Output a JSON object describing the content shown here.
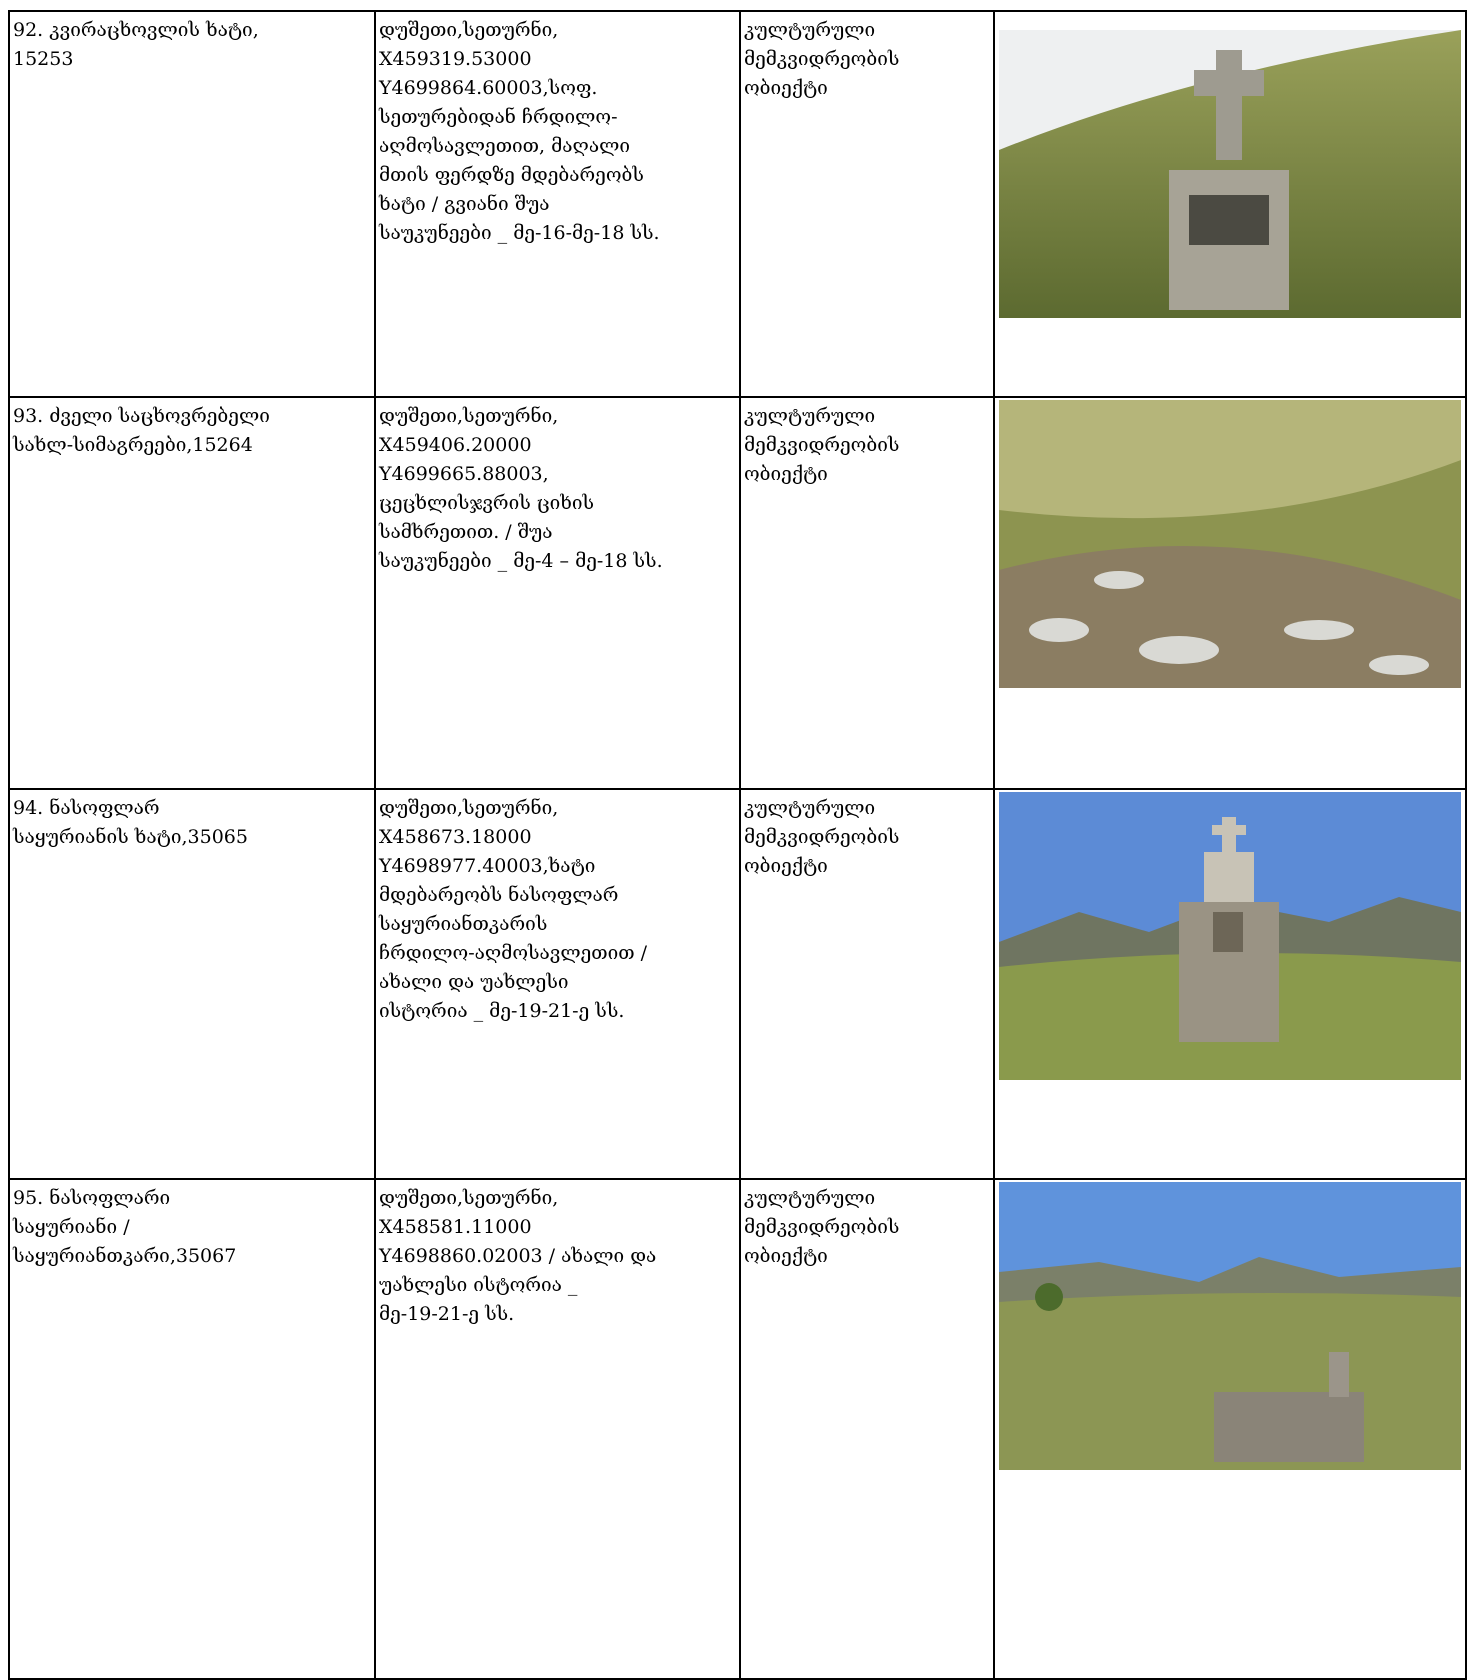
{
  "table": {
    "rows": [
      {
        "name": [
          "92.  კვირაცხოვლის ხატი,",
          "15253"
        ],
        "location": [
          "დუშეთი,სეთურნი,",
          "X459319.53000",
          "Y4699864.60003,სოფ.",
          "სეთურებიდან ჩრდილო-",
          "აღმოსავლეთით, მაღალი",
          "მთის ფერდზე მდებარეობს",
          "ხატი / გვიანი შუა",
          "საუკუნეები _ მე-16-მე-18 სს."
        ],
        "category": [
          "კულტურული",
          "მემკვიდრეობის",
          "ობიექტი"
        ]
      },
      {
        "name": [
          "93. ძველი საცხოვრებელი",
          "სახლ-სიმაგრეები,15264"
        ],
        "location": [
          "დუშეთი,სეთურნი,",
          "X459406.20000",
          "Y4699665.88003,",
          "ცეცხლისჯვრის ციხის",
          "სამხრეთით. / შუა",
          "საუკუნეები _ მე-4 – მე-18 სს."
        ],
        "category": [
          "კულტურული",
          "მემკვიდრეობის",
          "ობიექტი"
        ]
      },
      {
        "name": [
          "94. ნასოფლარ",
          "საყურიანის ხატი,35065"
        ],
        "location": [
          "დუშეთი,სეთურნი,",
          "X458673.18000",
          "Y4698977.40003,ხატი",
          "მდებარეობს ნასოფლარ",
          "საყურიანთკარის",
          "ჩრდილო-აღმოსავლეთით /",
          "ახალი და უახლესი",
          "ისტორია  _ მე-19-21-ე სს."
        ],
        "category": [
          "კულტურული",
          "მემკვიდრეობის",
          "ობიექტი"
        ]
      },
      {
        "name": [
          "95. ნასოფლარი",
          "საყურიანი /",
          "საყურიანთკარი,35067"
        ],
        "location": [
          "დუშეთი,სეთურნი,",
          "X458581.11000",
          "Y4698860.02003 / ახალი და",
          "უახლესი ისტორია  _",
          "მე-19-21-ე სს."
        ],
        "category": [
          "კულტურული",
          "მემკვიდრეობის",
          "ობიექტი"
        ]
      }
    ]
  }
}
